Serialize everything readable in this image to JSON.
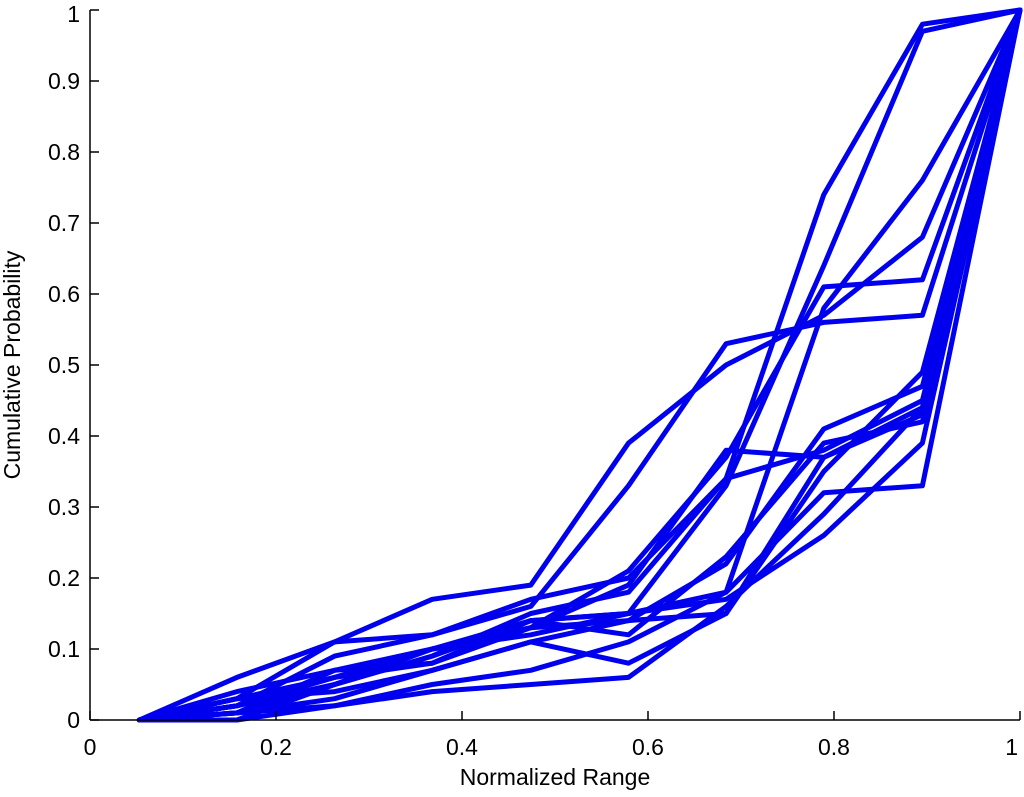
{
  "chart_data": {
    "type": "line",
    "title": "",
    "xlabel": "Normalized Range",
    "ylabel": "Cumulative Probability",
    "xlim": [
      0,
      1
    ],
    "ylim": [
      0,
      1
    ],
    "x_ticks": [
      "0",
      "0.2",
      "0.4",
      "0.6",
      "0.8",
      "1"
    ],
    "y_ticks": [
      "0",
      "0.1",
      "0.2",
      "0.3",
      "0.4",
      "0.5",
      "0.6",
      "0.7",
      "0.8",
      "0.9",
      "1"
    ],
    "grid": false,
    "legend": "none",
    "line_color": "#0000ee",
    "x": [
      0.053,
      0.158,
      0.263,
      0.368,
      0.474,
      0.579,
      0.684,
      0.789,
      0.895,
      1.0
    ],
    "series": [
      {
        "values": [
          0,
          0.03,
          0.11,
          0.17,
          0.19,
          0.39,
          0.5,
          0.57,
          0.68,
          1.0
        ]
      },
      {
        "values": [
          0,
          0.06,
          0.11,
          0.12,
          0.16,
          0.33,
          0.53,
          0.56,
          0.57,
          1.0
        ]
      },
      {
        "values": [
          0,
          0.02,
          0.05,
          0.09,
          0.15,
          0.18,
          0.34,
          0.74,
          0.98,
          1.0
        ]
      },
      {
        "values": [
          0,
          0.01,
          0.05,
          0.1,
          0.14,
          0.15,
          0.33,
          0.64,
          0.97,
          1.0
        ]
      },
      {
        "values": [
          0,
          0.04,
          0.07,
          0.1,
          0.13,
          0.21,
          0.37,
          0.61,
          0.62,
          1.0
        ]
      },
      {
        "values": [
          0,
          0.03,
          0.06,
          0.1,
          0.12,
          0.15,
          0.18,
          0.58,
          0.76,
          1.0
        ]
      },
      {
        "values": [
          0,
          0.02,
          0.09,
          0.12,
          0.17,
          0.2,
          0.34,
          0.38,
          0.45,
          1.0
        ]
      },
      {
        "values": [
          0,
          0.01,
          0.07,
          0.08,
          0.13,
          0.19,
          0.38,
          0.37,
          0.44,
          1.0
        ]
      },
      {
        "values": [
          0,
          0.01,
          0.03,
          0.07,
          0.11,
          0.14,
          0.22,
          0.41,
          0.47,
          1.0
        ]
      },
      {
        "values": [
          0,
          0.0,
          0.05,
          0.09,
          0.14,
          0.12,
          0.23,
          0.39,
          0.42,
          1.0
        ]
      },
      {
        "values": [
          0,
          0.02,
          0.06,
          0.08,
          0.14,
          0.15,
          0.17,
          0.26,
          0.39,
          1.0
        ]
      },
      {
        "values": [
          0,
          0.0,
          0.02,
          0.05,
          0.07,
          0.11,
          0.18,
          0.32,
          0.33,
          1.0
        ]
      },
      {
        "values": [
          0,
          0.01,
          0.02,
          0.04,
          0.05,
          0.06,
          0.16,
          0.29,
          0.44,
          1.0
        ]
      },
      {
        "values": [
          0,
          0.03,
          0.04,
          0.07,
          0.11,
          0.08,
          0.15,
          0.35,
          0.49,
          1.0
        ]
      },
      {
        "values": [
          0,
          0.02,
          0.06,
          0.1,
          0.13,
          0.14,
          0.15,
          0.37,
          0.43,
          1.0
        ]
      }
    ]
  }
}
